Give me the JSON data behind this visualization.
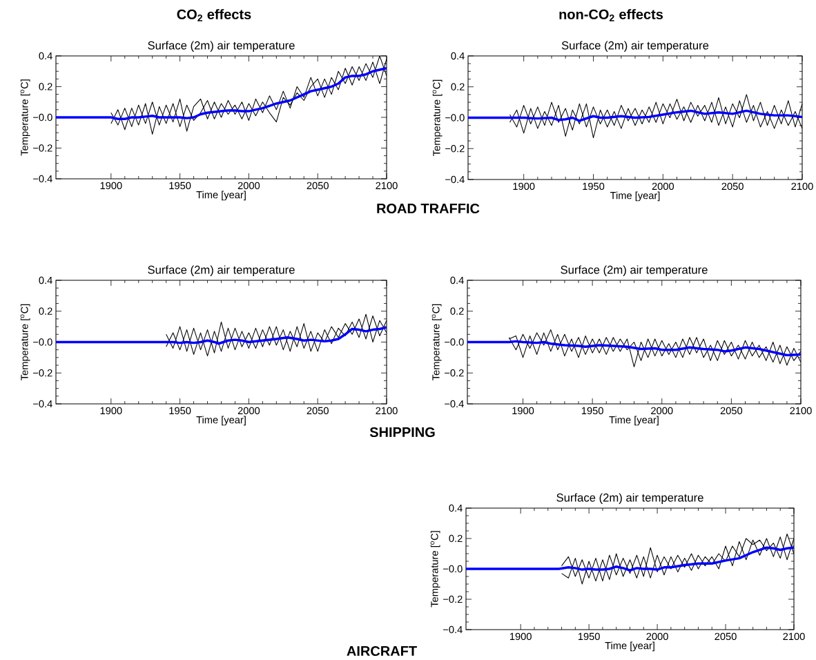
{
  "chart_data": [
    {
      "type": "line",
      "title": "Surface (2m) air temperature",
      "xlabel": "Time [year]",
      "ylabel": "Temperature [$^{o}$C]",
      "xlim": [
        1860,
        2100
      ],
      "ylim": [
        -0.4,
        0.4
      ],
      "xticks": [
        1900,
        1950,
        2000,
        2050,
        2100
      ],
      "yticks": [
        {
          "value": -0.4,
          "label": "−0.4"
        },
        {
          "value": -0.2,
          "label": "−0.2"
        },
        {
          "value": 0,
          "label": "−0.0"
        },
        {
          "value": 0.2,
          "label": "0.2"
        },
        {
          "value": 0.4,
          "label": "0.4"
        }
      ],
      "annotations": [
        "CO$_{2}$  effects",
        "ROAD TRAFFIC"
      ],
      "series": [
        {
          "color": "#000000",
          "x": [
            1900,
            1905,
            1910,
            1915,
            1920,
            1925,
            1930,
            1935,
            1940,
            1945,
            1950,
            1955,
            1960,
            1965,
            1970,
            1975,
            1980,
            1985,
            1990,
            1995,
            2000,
            2005,
            2010,
            2015,
            2020,
            2025,
            2030,
            2035,
            2040,
            2045,
            2050,
            2055,
            2060,
            2065,
            2070,
            2075,
            2080,
            2085,
            2090,
            2095,
            2100
          ],
          "values": [
            0.03,
            -0.05,
            0.06,
            -0.06,
            0.08,
            -0.04,
            0.1,
            -0.05,
            0.08,
            -0.03,
            0.12,
            -0.09,
            0.07,
            0.12,
            -0.01,
            0.1,
            0.0,
            0.11,
            0.02,
            0.1,
            -0.02,
            0.12,
            0.03,
            0.14,
            0.05,
            0.17,
            0.06,
            0.2,
            0.13,
            0.26,
            0.14,
            0.25,
            0.15,
            0.3,
            0.22,
            0.33,
            0.24,
            0.35,
            0.26,
            0.4,
            0.27
          ]
        },
        {
          "color": "#000000",
          "x": [
            1900,
            1905,
            1910,
            1915,
            1920,
            1925,
            1930,
            1935,
            1940,
            1945,
            1950,
            1955,
            1960,
            1965,
            1970,
            1975,
            1980,
            1985,
            1990,
            1995,
            2000,
            2005,
            2010,
            2015,
            2020,
            2025,
            2030,
            2035,
            2040,
            2045,
            2050,
            2055,
            2060,
            2065,
            2070,
            2075,
            2080,
            2085,
            2090,
            2095,
            2100
          ],
          "values": [
            -0.04,
            0.05,
            -0.08,
            0.06,
            -0.05,
            0.09,
            -0.11,
            0.07,
            -0.04,
            0.09,
            -0.06,
            0.08,
            -0.02,
            0.03,
            0.11,
            -0.01,
            0.09,
            0.02,
            0.08,
            -0.01,
            0.09,
            0.01,
            0.1,
            0.03,
            -0.03,
            0.13,
            0.08,
            0.16,
            0.11,
            0.2,
            0.25,
            0.13,
            0.26,
            0.18,
            0.32,
            0.21,
            0.33,
            0.24,
            0.36,
            0.22,
            0.38
          ]
        },
        {
          "color": "#0000ff",
          "x": [
            1860,
            1900,
            1905,
            1910,
            1915,
            1920,
            1925,
            1930,
            1935,
            1940,
            1945,
            1950,
            1955,
            1960,
            1965,
            1970,
            1975,
            1980,
            1985,
            1990,
            1995,
            2000,
            2005,
            2010,
            2015,
            2020,
            2025,
            2030,
            2035,
            2040,
            2045,
            2050,
            2055,
            2060,
            2065,
            2070,
            2075,
            2080,
            2085,
            2090,
            2095,
            2100
          ],
          "values": [
            0,
            0,
            -0.01,
            -0.01,
            0,
            0,
            0.005,
            0.01,
            0,
            0,
            0,
            0,
            -0.005,
            0,
            0.02,
            0.03,
            0.035,
            0.04,
            0.045,
            0.045,
            0.04,
            0.04,
            0.05,
            0.06,
            0.075,
            0.09,
            0.1,
            0.11,
            0.13,
            0.15,
            0.17,
            0.18,
            0.19,
            0.2,
            0.22,
            0.26,
            0.27,
            0.27,
            0.28,
            0.3,
            0.31,
            0.32
          ]
        }
      ]
    },
    {
      "type": "line",
      "title": "Surface (2m) air temperature",
      "xlabel": "Time [year]",
      "ylabel": "Temperature [$^{o}$C]",
      "xlim": [
        1860,
        2100
      ],
      "ylim": [
        -0.4,
        0.4
      ],
      "xticks": [
        1900,
        1950,
        2000,
        2050,
        2100
      ],
      "yticks": [
        {
          "value": -0.4,
          "label": "−0.4"
        },
        {
          "value": -0.2,
          "label": "−0.2"
        },
        {
          "value": 0,
          "label": "−0.0"
        },
        {
          "value": 0.2,
          "label": "0.2"
        },
        {
          "value": 0.4,
          "label": "0.4"
        }
      ],
      "annotations": [
        "non-CO$_{2}$ effects"
      ],
      "series": [
        {
          "color": "#000000",
          "x": [
            1890,
            1895,
            1900,
            1905,
            1910,
            1915,
            1920,
            1925,
            1930,
            1935,
            1940,
            1945,
            1950,
            1955,
            1960,
            1965,
            1970,
            1975,
            1980,
            1985,
            1990,
            1995,
            2000,
            2005,
            2010,
            2015,
            2020,
            2025,
            2030,
            2035,
            2040,
            2045,
            2050,
            2055,
            2060,
            2065,
            2070,
            2075,
            2080,
            2085,
            2090,
            2095,
            2100
          ],
          "values": [
            0.02,
            -0.06,
            0.08,
            -0.04,
            0.07,
            -0.05,
            0.1,
            -0.03,
            0.06,
            -0.08,
            0.09,
            -0.06,
            0.07,
            -0.04,
            0.05,
            -0.05,
            0.08,
            -0.02,
            0.06,
            -0.04,
            0.07,
            -0.03,
            0.09,
            0.0,
            0.12,
            -0.02,
            0.1,
            0.01,
            0.08,
            -0.03,
            0.13,
            -0.04,
            0.09,
            0.0,
            0.15,
            -0.02,
            0.1,
            -0.05,
            0.08,
            -0.04,
            0.11,
            -0.06,
            0.09
          ]
        },
        {
          "color": "#000000",
          "x": [
            1890,
            1895,
            1900,
            1905,
            1910,
            1915,
            1920,
            1925,
            1930,
            1935,
            1940,
            1945,
            1950,
            1955,
            1960,
            1965,
            1970,
            1975,
            1980,
            1985,
            1990,
            1995,
            2000,
            2005,
            2010,
            2015,
            2020,
            2025,
            2030,
            2035,
            2040,
            2045,
            2050,
            2055,
            2060,
            2065,
            2070,
            2075,
            2080,
            2085,
            2090,
            2095,
            2100
          ],
          "values": [
            -0.03,
            0.05,
            -0.1,
            0.06,
            -0.07,
            0.04,
            -0.05,
            0.08,
            -0.12,
            0.05,
            -0.04,
            0.09,
            -0.13,
            0.05,
            -0.06,
            0.04,
            -0.07,
            0.06,
            -0.05,
            0.05,
            -0.03,
            0.1,
            -0.04,
            0.09,
            -0.01,
            0.07,
            -0.03,
            0.08,
            -0.02,
            0.1,
            -0.05,
            0.07,
            -0.06,
            0.11,
            -0.03,
            0.08,
            -0.06,
            0.04,
            -0.07,
            0.05,
            -0.05,
            0.04,
            -0.07
          ]
        },
        {
          "color": "#0000ff",
          "x": [
            1860,
            1890,
            1900,
            1910,
            1920,
            1925,
            1930,
            1935,
            1940,
            1950,
            1955,
            1960,
            1970,
            1980,
            1990,
            2000,
            2010,
            2020,
            2030,
            2040,
            2050,
            2060,
            2070,
            2080,
            2090,
            2100
          ],
          "values": [
            0,
            0,
            0,
            -0.005,
            0,
            -0.015,
            -0.01,
            0,
            -0.02,
            0.01,
            0,
            0,
            0.01,
            0,
            0.005,
            0.02,
            0.035,
            0.045,
            0.025,
            0.035,
            0.025,
            0.045,
            0.025,
            0.015,
            0.015,
            0.005
          ]
        }
      ]
    },
    {
      "type": "line",
      "title": "Surface (2m) air temperature",
      "xlabel": "Time [year]",
      "ylabel": "Temperature [$^{o}$C]",
      "xlim": [
        1860,
        2100
      ],
      "ylim": [
        -0.4,
        0.4
      ],
      "xticks": [
        1900,
        1950,
        2000,
        2050,
        2100
      ],
      "yticks": [
        {
          "value": -0.4,
          "label": "−0.4"
        },
        {
          "value": -0.2,
          "label": "−0.2"
        },
        {
          "value": 0,
          "label": "−0.0"
        },
        {
          "value": 0.2,
          "label": "0.2"
        },
        {
          "value": 0.4,
          "label": "0.4"
        }
      ],
      "annotations": [
        "SHIPPING"
      ],
      "series": [
        {
          "color": "#000000",
          "x": [
            1940,
            1945,
            1950,
            1955,
            1960,
            1965,
            1970,
            1975,
            1980,
            1985,
            1990,
            1995,
            2000,
            2005,
            2010,
            2015,
            2020,
            2025,
            2030,
            2035,
            2040,
            2045,
            2050,
            2055,
            2060,
            2065,
            2070,
            2075,
            2080,
            2085,
            2090,
            2095,
            2100
          ],
          "values": [
            0.05,
            -0.04,
            0.1,
            -0.06,
            0.09,
            -0.05,
            0.08,
            -0.07,
            0.13,
            -0.04,
            0.09,
            -0.03,
            0.06,
            -0.04,
            0.08,
            -0.02,
            0.1,
            -0.05,
            0.07,
            -0.03,
            0.12,
            -0.06,
            0.06,
            0.0,
            0.1,
            0.03,
            0.12,
            0.05,
            0.15,
            0.02,
            0.17,
            0.04,
            0.14
          ]
        },
        {
          "color": "#000000",
          "x": [
            1940,
            1945,
            1950,
            1955,
            1960,
            1965,
            1970,
            1975,
            1980,
            1985,
            1990,
            1995,
            2000,
            2005,
            2010,
            2015,
            2020,
            2025,
            2030,
            2035,
            2040,
            2045,
            2050,
            2055,
            2060,
            2065,
            2070,
            2075,
            2080,
            2085,
            2090,
            2095,
            2100
          ],
          "values": [
            -0.03,
            0.06,
            -0.05,
            0.08,
            -0.08,
            0.06,
            -0.09,
            0.07,
            -0.06,
            0.09,
            -0.05,
            0.07,
            -0.04,
            0.09,
            -0.03,
            0.1,
            -0.02,
            0.08,
            -0.06,
            0.1,
            -0.04,
            0.07,
            -0.06,
            0.08,
            -0.01,
            0.09,
            0.04,
            0.13,
            0.03,
            0.18,
            0.0,
            0.14,
            0.06
          ]
        },
        {
          "color": "#0000ff",
          "x": [
            1860,
            1938,
            1945,
            1950,
            1955,
            1960,
            1965,
            1970,
            1975,
            1978,
            1985,
            1990,
            1995,
            2000,
            2005,
            2010,
            2020,
            2028,
            2035,
            2040,
            2045,
            2050,
            2055,
            2060,
            2065,
            2070,
            2075,
            2080,
            2085,
            2090,
            2095,
            2100
          ],
          "values": [
            0,
            0,
            0,
            -0.005,
            0,
            -0.005,
            0,
            0.01,
            0,
            -0.01,
            0.01,
            0.015,
            0.01,
            0,
            0.005,
            0.01,
            0.02,
            0.03,
            0.02,
            0.01,
            0.015,
            0.01,
            0.005,
            0.01,
            0.02,
            0.05,
            0.085,
            0.08,
            0.07,
            0.08,
            0.085,
            0.095
          ]
        }
      ]
    },
    {
      "type": "line",
      "title": "Surface (2m) air temperature",
      "xlabel": "Time [year]",
      "ylabel": "Temperature [$^{o}$C]",
      "xlim": [
        1860,
        2100
      ],
      "ylim": [
        -0.4,
        0.4
      ],
      "xticks": [
        1900,
        1950,
        2000,
        2050,
        2100
      ],
      "yticks": [
        {
          "value": -0.4,
          "label": "−0.4"
        },
        {
          "value": -0.2,
          "label": "−0.2"
        },
        {
          "value": 0,
          "label": "−0.0"
        },
        {
          "value": 0.2,
          "label": "0.2"
        },
        {
          "value": 0.4,
          "label": "0.4"
        }
      ],
      "series": [
        {
          "color": "#000000",
          "x": [
            1890,
            1895,
            1900,
            1905,
            1910,
            1915,
            1920,
            1925,
            1930,
            1935,
            1940,
            1945,
            1950,
            1955,
            1960,
            1965,
            1970,
            1975,
            1980,
            1985,
            1990,
            1995,
            2000,
            2005,
            2010,
            2015,
            2020,
            2025,
            2030,
            2035,
            2040,
            2045,
            2050,
            2055,
            2060,
            2065,
            2070,
            2075,
            2080,
            2085,
            2090,
            2095,
            2100
          ],
          "values": [
            0.03,
            -0.05,
            0.05,
            -0.04,
            0.06,
            -0.02,
            0.08,
            -0.05,
            0.05,
            -0.06,
            0.03,
            -0.08,
            0.02,
            -0.07,
            0.03,
            -0.06,
            0.02,
            -0.05,
            0.0,
            -0.12,
            0.02,
            -0.09,
            0.01,
            -0.08,
            0.0,
            -0.1,
            0.03,
            -0.07,
            0.02,
            -0.12,
            0.01,
            -0.08,
            0.0,
            -0.11,
            0.01,
            -0.09,
            -0.02,
            -0.12,
            0.0,
            -0.14,
            -0.03,
            -0.12,
            -0.06
          ]
        },
        {
          "color": "#000000",
          "x": [
            1890,
            1895,
            1900,
            1905,
            1910,
            1915,
            1920,
            1925,
            1930,
            1935,
            1940,
            1945,
            1950,
            1955,
            1960,
            1965,
            1970,
            1975,
            1980,
            1985,
            1990,
            1995,
            2000,
            2005,
            2010,
            2015,
            2020,
            2025,
            2030,
            2035,
            2040,
            2045,
            2050,
            2055,
            2060,
            2065,
            2070,
            2075,
            2080,
            2085,
            2090,
            2095,
            2100
          ],
          "values": [
            0.02,
            0.04,
            -0.1,
            0.04,
            -0.08,
            0.06,
            -0.06,
            0.05,
            -0.09,
            0.02,
            -0.1,
            0.04,
            -0.07,
            0.02,
            -0.08,
            0.03,
            -0.06,
            0.02,
            -0.16,
            0.0,
            -0.1,
            0.02,
            -0.09,
            -0.01,
            -0.1,
            0.02,
            -0.08,
            0.03,
            -0.1,
            -0.02,
            -0.12,
            0.01,
            -0.09,
            -0.02,
            -0.11,
            0.0,
            -0.1,
            -0.03,
            -0.13,
            -0.02,
            -0.15,
            -0.04,
            -0.13
          ]
        },
        {
          "color": "#0000ff",
          "x": [
            1860,
            1890,
            1895,
            1900,
            1910,
            1915,
            1920,
            1930,
            1940,
            1945,
            1955,
            1965,
            1975,
            1985,
            1995,
            2000,
            2010,
            2020,
            2030,
            2040,
            2045,
            2050,
            2060,
            2070,
            2080,
            2090,
            2100
          ],
          "values": [
            0,
            0,
            0.005,
            0,
            -0.005,
            0,
            -0.01,
            -0.02,
            -0.025,
            -0.03,
            -0.02,
            -0.025,
            -0.03,
            -0.045,
            -0.04,
            -0.05,
            -0.05,
            -0.035,
            -0.045,
            -0.05,
            -0.06,
            -0.055,
            -0.035,
            -0.045,
            -0.065,
            -0.085,
            -0.08
          ]
        }
      ]
    },
    {
      "type": "line",
      "title": "Surface (2m) air temperature",
      "xlabel": "Time [year]",
      "ylabel": "Temperature [$^{o}$C]",
      "xlim": [
        1860,
        2100
      ],
      "ylim": [
        -0.4,
        0.4
      ],
      "xticks": [
        1900,
        1950,
        2000,
        2050,
        2100
      ],
      "yticks": [
        {
          "value": -0.4,
          "label": "−0.4"
        },
        {
          "value": -0.2,
          "label": "−0.2"
        },
        {
          "value": 0,
          "label": "−0.0"
        },
        {
          "value": 0.2,
          "label": "0.2"
        },
        {
          "value": 0.4,
          "label": "0.4"
        }
      ],
      "annotations": [
        "AIRCRAFT"
      ],
      "series": [
        {
          "color": "#000000",
          "x": [
            1930,
            1935,
            1940,
            1945,
            1950,
            1955,
            1960,
            1965,
            1970,
            1975,
            1980,
            1985,
            1990,
            1995,
            2000,
            2005,
            2010,
            2015,
            2020,
            2025,
            2030,
            2035,
            2040,
            2045,
            2050,
            2055,
            2060,
            2065,
            2070,
            2075,
            2080,
            2085,
            2090,
            2095,
            2100
          ],
          "values": [
            0.02,
            0.08,
            -0.05,
            0.06,
            -0.06,
            0.07,
            -0.08,
            0.09,
            -0.04,
            0.07,
            -0.03,
            0.09,
            -0.05,
            0.14,
            -0.02,
            0.08,
            0.0,
            0.09,
            0.01,
            0.1,
            0.0,
            0.08,
            0.03,
            0.1,
            0.05,
            0.15,
            0.08,
            0.2,
            0.16,
            0.19,
            0.12,
            0.17,
            0.07,
            0.23,
            0.1
          ]
        },
        {
          "color": "#000000",
          "x": [
            1930,
            1935,
            1940,
            1945,
            1950,
            1955,
            1960,
            1965,
            1970,
            1975,
            1980,
            1985,
            1990,
            1995,
            2000,
            2005,
            2010,
            2015,
            2020,
            2025,
            2030,
            2035,
            2040,
            2045,
            2050,
            2055,
            2060,
            2065,
            2070,
            2075,
            2080,
            2085,
            2090,
            2095,
            2100
          ],
          "values": [
            -0.03,
            -0.06,
            0.07,
            -0.1,
            0.05,
            -0.08,
            0.06,
            -0.07,
            0.1,
            -0.05,
            0.06,
            -0.06,
            0.08,
            -0.06,
            0.09,
            -0.04,
            0.08,
            -0.02,
            0.07,
            -0.01,
            0.09,
            0.02,
            0.08,
            0.0,
            0.15,
            0.02,
            0.18,
            0.06,
            0.19,
            0.09,
            0.2,
            0.08,
            0.21,
            0.06,
            0.2
          ]
        },
        {
          "color": "#0000ff",
          "x": [
            1860,
            1928,
            1935,
            1940,
            1945,
            1950,
            1955,
            1960,
            1965,
            1970,
            1975,
            1980,
            1985,
            1990,
            1995,
            2000,
            2005,
            2010,
            2020,
            2030,
            2040,
            2050,
            2060,
            2065,
            2070,
            2075,
            2080,
            2085,
            2090,
            2095,
            2100
          ],
          "values": [
            0,
            0,
            0.01,
            0.005,
            -0.005,
            0,
            -0.005,
            -0.005,
            0,
            0.015,
            0.005,
            -0.01,
            0.005,
            0,
            0,
            -0.005,
            0.01,
            0.01,
            0.025,
            0.035,
            0.035,
            0.055,
            0.07,
            0.09,
            0.11,
            0.125,
            0.14,
            0.135,
            0.125,
            0.135,
            0.14
          ]
        }
      ]
    }
  ]
}
